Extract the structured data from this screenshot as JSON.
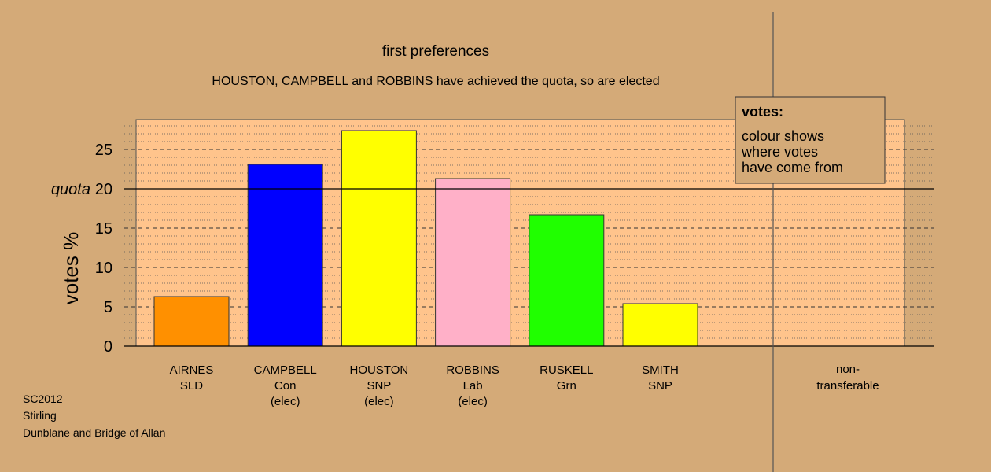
{
  "chart_data": {
    "type": "bar",
    "title": "first preferences",
    "subtitle": "HOUSTON, CAMPBELL and ROBBINS have achieved the quota, so are elected",
    "ylabel": "votes %",
    "ylim": [
      0,
      28.8
    ],
    "yticks": [
      0,
      5,
      10,
      15,
      20,
      25
    ],
    "quota": 20,
    "quota_label": "quota",
    "grid": true,
    "categories": [
      {
        "name": "AIRNES",
        "party": "SLD",
        "status": ""
      },
      {
        "name": "CAMPBELL",
        "party": "Con",
        "status": "(elec)"
      },
      {
        "name": "HOUSTON",
        "party": "SNP",
        "status": "(elec)"
      },
      {
        "name": "ROBBINS",
        "party": "Lab",
        "status": "(elec)"
      },
      {
        "name": "RUSKELL",
        "party": "Grn",
        "status": ""
      },
      {
        "name": "SMITH",
        "party": "SNP",
        "status": ""
      }
    ],
    "values": [
      6.3,
      23.1,
      27.4,
      21.3,
      16.7,
      5.4
    ],
    "colors": [
      "#ff9000",
      "#0000ff",
      "#ffff00",
      "#ffb0c8",
      "#20ff00",
      "#ffff00"
    ],
    "extra_category": {
      "line1": "non-",
      "line2": "transferable",
      "value": 0
    },
    "legend": {
      "placement": "top-right",
      "title": "votes:",
      "lines": [
        "colour shows",
        "where votes",
        "have come from"
      ]
    }
  },
  "footer": {
    "line1": "SC2012",
    "line2": "Stirling",
    "line3": "Dunblane and Bridge of Allan"
  },
  "colors": {
    "background": "#d4aa78",
    "plot_background": "#ffc48c"
  }
}
